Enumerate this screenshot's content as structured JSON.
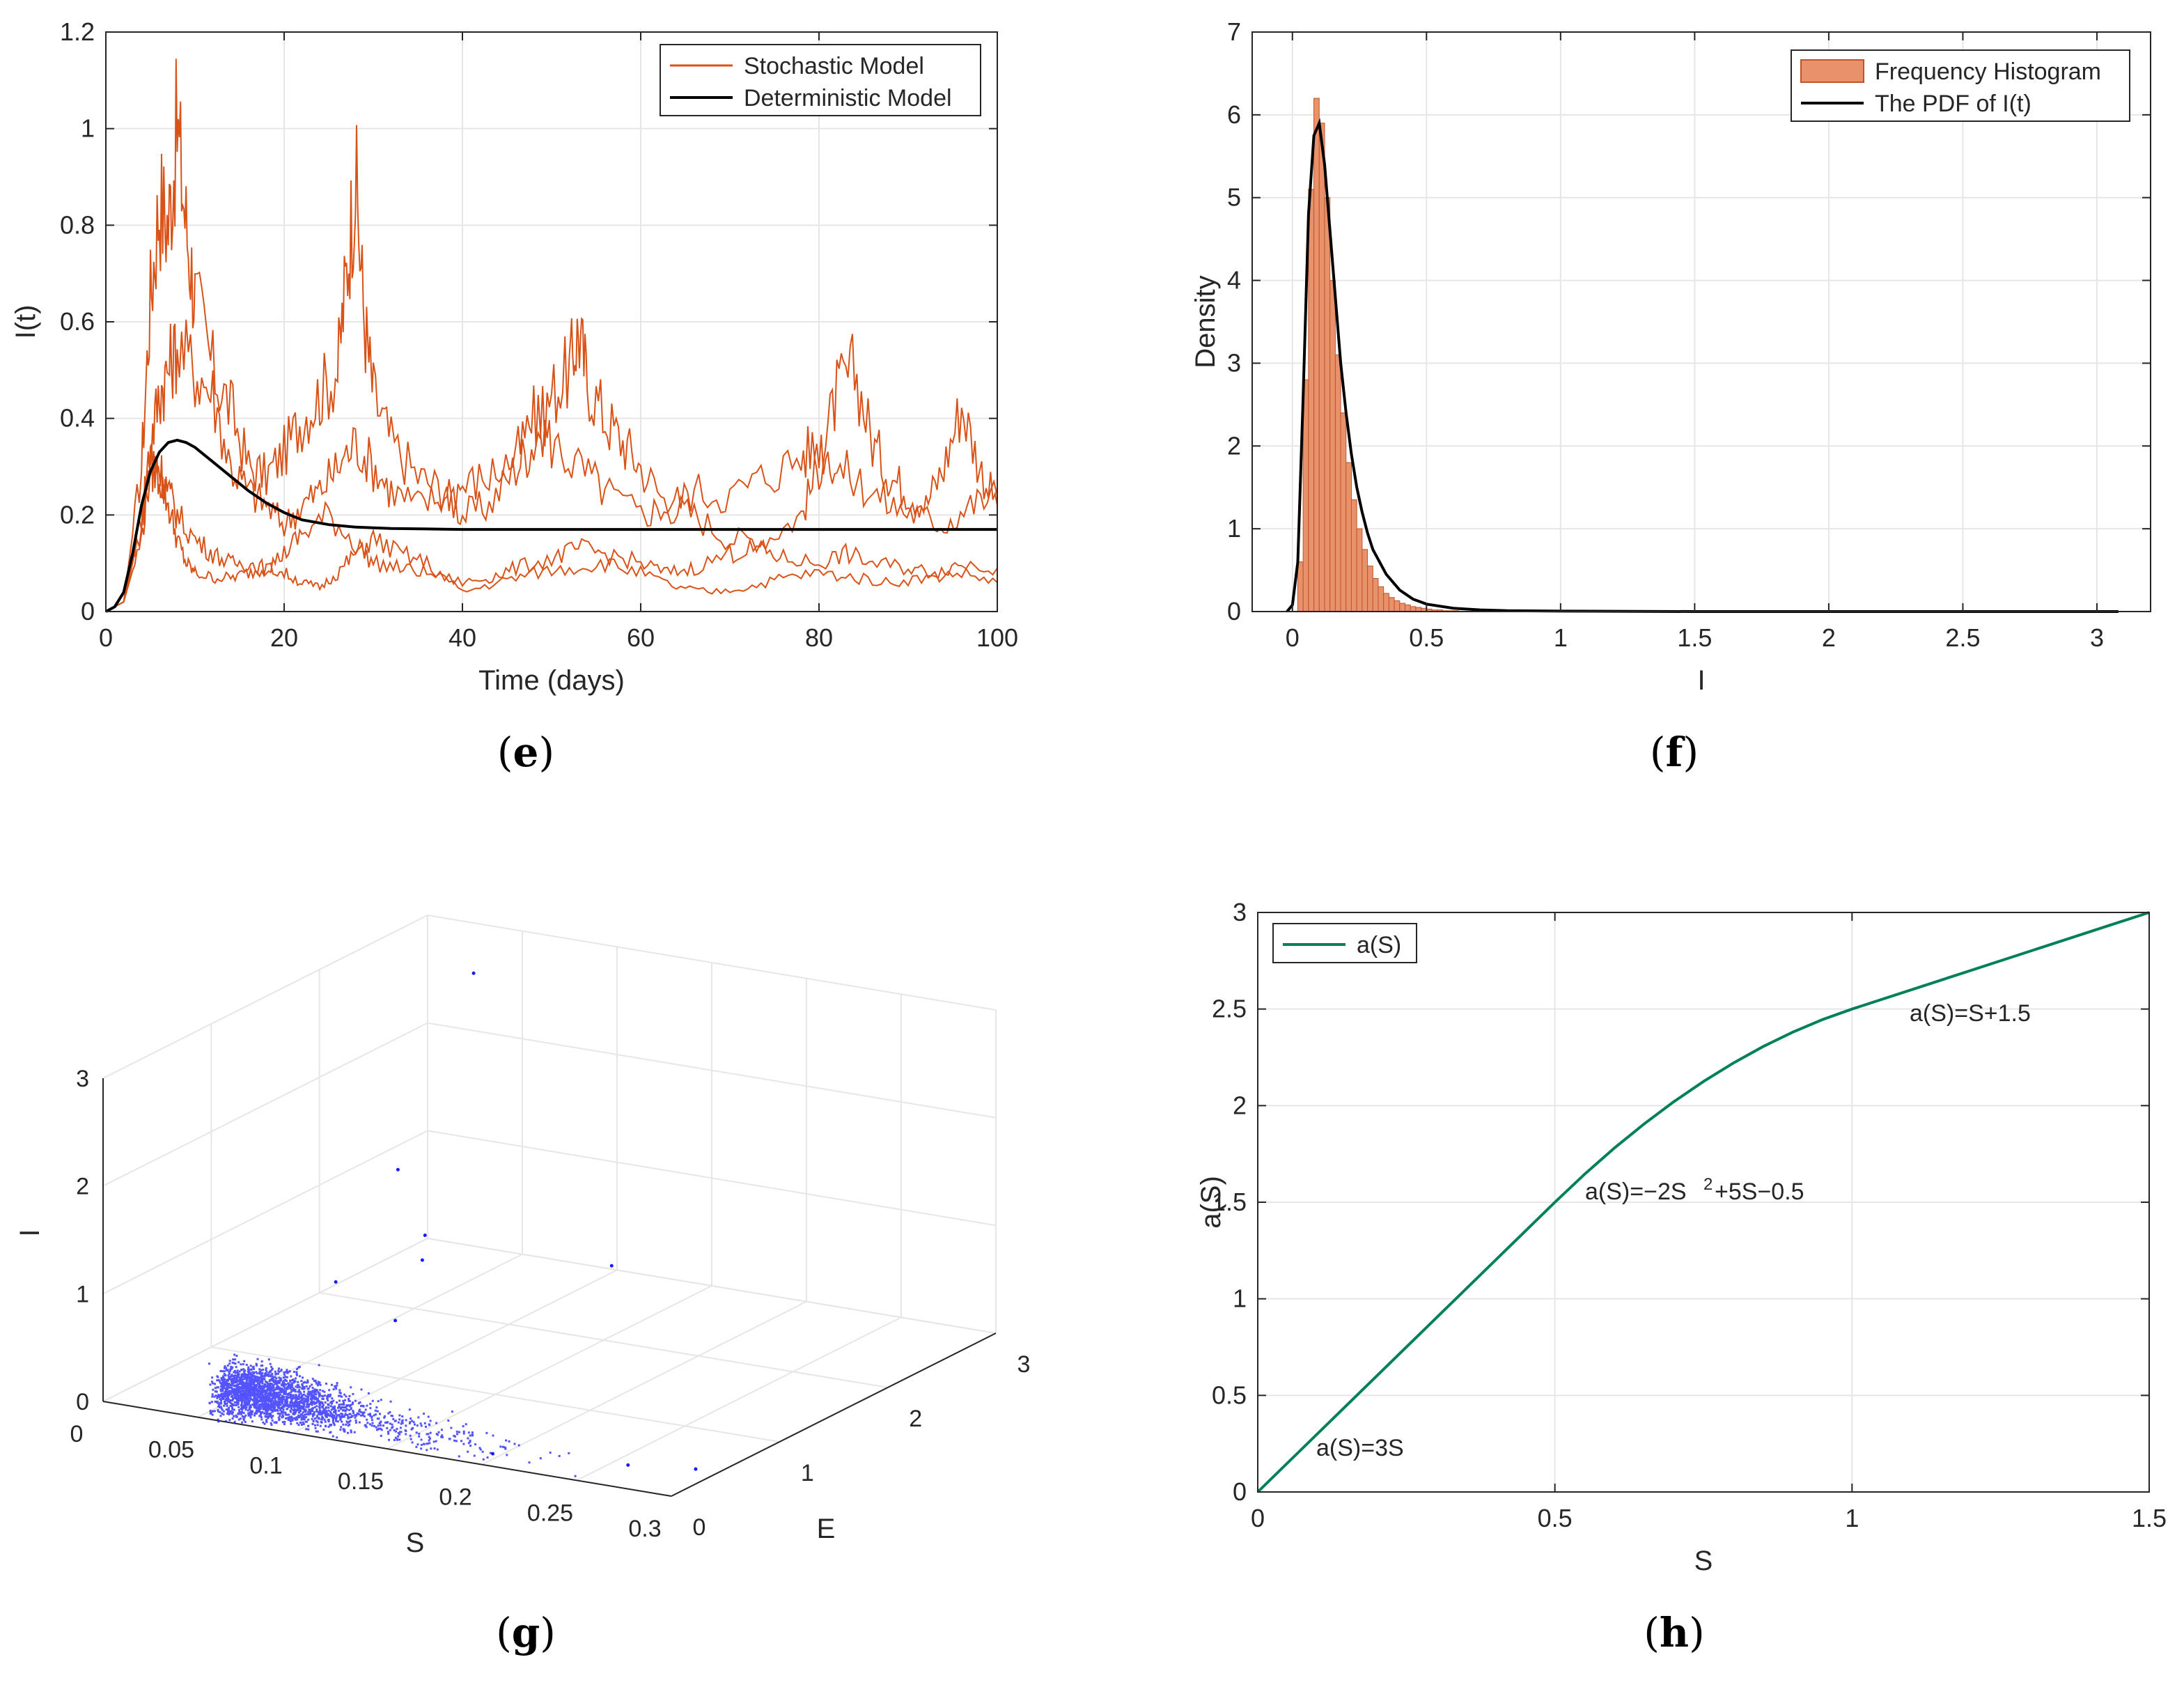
{
  "colors": {
    "stochastic": "#d95319",
    "deterministic": "#000000",
    "histogram_fill": "#e8926c",
    "histogram_edge": "#c2522a",
    "scatter": "#1a1aff",
    "a_curve": "#00805a",
    "grid": "#e6e6e6",
    "axis": "#262626"
  },
  "captions": {
    "e": "e",
    "f": "f",
    "g": "g",
    "h": "h"
  },
  "chart_data": [
    {
      "panel": "e",
      "type": "line",
      "xlabel": "Time (days)",
      "ylabel": "I(t)",
      "xlim": [
        0,
        100
      ],
      "ylim": [
        0,
        1.2
      ],
      "xticks": [
        "0",
        "20",
        "40",
        "60",
        "80",
        "100"
      ],
      "yticks": [
        "0",
        "0.2",
        "0.4",
        "0.6",
        "0.8",
        "1",
        "1.2"
      ],
      "grid": true,
      "legend": {
        "position": "top-right",
        "entries": [
          "Stochastic Model",
          "Deterministic Model"
        ]
      },
      "series": [
        {
          "name": "Deterministic Model",
          "x": [
            0,
            1,
            2,
            3,
            4,
            5,
            6,
            7,
            8,
            9,
            10,
            12,
            14,
            16,
            18,
            20,
            22,
            25,
            28,
            32,
            36,
            40,
            50,
            60,
            70,
            80,
            90,
            100
          ],
          "y": [
            0,
            0.01,
            0.04,
            0.12,
            0.22,
            0.29,
            0.33,
            0.35,
            0.355,
            0.35,
            0.34,
            0.31,
            0.28,
            0.25,
            0.225,
            0.205,
            0.19,
            0.18,
            0.175,
            0.172,
            0.171,
            0.17,
            0.17,
            0.17,
            0.17,
            0.17,
            0.17,
            0.17
          ]
        },
        {
          "name": "Stochastic Model 1",
          "x": [
            0,
            2,
            4,
            5,
            6,
            7,
            8,
            9,
            10,
            12,
            14,
            16,
            18,
            20,
            22,
            24,
            26,
            27,
            28,
            29,
            30,
            32,
            35,
            38,
            40,
            43,
            46,
            48,
            50,
            52,
            53,
            54,
            56,
            58,
            60,
            63,
            66,
            70,
            74,
            78,
            80,
            82,
            84,
            86,
            88,
            90,
            92,
            94,
            96,
            98,
            100
          ],
          "y": [
            0,
            0.02,
            0.3,
            0.65,
            0.85,
            0.8,
            1.0,
            0.8,
            0.65,
            0.5,
            0.42,
            0.3,
            0.28,
            0.33,
            0.4,
            0.45,
            0.5,
            0.7,
            0.9,
            0.6,
            0.45,
            0.35,
            0.28,
            0.25,
            0.2,
            0.22,
            0.3,
            0.35,
            0.45,
            0.5,
            0.58,
            0.48,
            0.4,
            0.35,
            0.3,
            0.22,
            0.2,
            0.15,
            0.15,
            0.2,
            0.3,
            0.45,
            0.5,
            0.35,
            0.28,
            0.25,
            0.22,
            0.3,
            0.43,
            0.3,
            0.22
          ]
        },
        {
          "name": "Stochastic Model 2",
          "x": [
            0,
            2,
            4,
            5,
            6,
            7,
            8,
            10,
            12,
            14,
            16,
            18,
            20,
            22,
            24,
            26,
            28,
            30,
            32,
            35,
            38,
            40,
            43,
            46,
            48,
            50,
            53,
            56,
            60,
            63,
            66,
            70,
            74,
            78,
            80,
            82,
            85,
            88,
            91,
            94,
            97,
            100
          ],
          "y": [
            0,
            0.02,
            0.2,
            0.35,
            0.45,
            0.5,
            0.55,
            0.5,
            0.45,
            0.3,
            0.25,
            0.22,
            0.18,
            0.22,
            0.25,
            0.3,
            0.35,
            0.3,
            0.25,
            0.22,
            0.24,
            0.26,
            0.28,
            0.32,
            0.4,
            0.35,
            0.3,
            0.25,
            0.2,
            0.22,
            0.25,
            0.24,
            0.28,
            0.32,
            0.35,
            0.3,
            0.26,
            0.22,
            0.2,
            0.18,
            0.22,
            0.24
          ]
        },
        {
          "name": "Stochastic Model 3",
          "x": [
            0,
            2,
            4,
            5,
            6,
            7,
            8,
            9,
            10,
            12,
            14,
            16,
            18,
            20,
            22,
            25,
            28,
            30,
            33,
            36,
            40,
            43,
            46,
            50,
            53,
            56,
            60,
            63,
            66,
            70,
            73,
            76,
            80,
            83,
            86,
            90,
            93,
            96,
            100
          ],
          "y": [
            0,
            0.02,
            0.15,
            0.3,
            0.28,
            0.22,
            0.15,
            0.1,
            0.08,
            0.07,
            0.07,
            0.08,
            0.09,
            0.12,
            0.16,
            0.2,
            0.14,
            0.1,
            0.09,
            0.08,
            0.06,
            0.07,
            0.09,
            0.11,
            0.13,
            0.12,
            0.1,
            0.08,
            0.09,
            0.12,
            0.13,
            0.11,
            0.1,
            0.12,
            0.1,
            0.09,
            0.08,
            0.1,
            0.09
          ]
        },
        {
          "name": "Stochastic Model 4",
          "x": [
            0,
            2,
            4,
            5,
            6,
            7,
            8,
            10,
            12,
            14,
            16,
            18,
            20,
            22,
            24,
            26,
            28,
            30,
            33,
            36,
            40,
            44,
            48,
            52,
            56,
            60,
            64,
            68,
            72,
            76,
            80,
            84,
            88,
            92,
            96,
            100
          ],
          "y": [
            0,
            0.02,
            0.18,
            0.32,
            0.3,
            0.25,
            0.2,
            0.15,
            0.12,
            0.1,
            0.1,
            0.09,
            0.08,
            0.06,
            0.05,
            0.08,
            0.12,
            0.15,
            0.12,
            0.1,
            0.04,
            0.06,
            0.08,
            0.09,
            0.1,
            0.08,
            0.05,
            0.04,
            0.05,
            0.07,
            0.08,
            0.07,
            0.06,
            0.07,
            0.08,
            0.06
          ]
        }
      ]
    },
    {
      "panel": "f",
      "type": "bar",
      "xlabel": "I",
      "ylabel": "Density",
      "xlim": [
        -0.15,
        3.2
      ],
      "ylim": [
        0,
        7
      ],
      "xticks": [
        "0",
        "0.5",
        "1",
        "1.5",
        "2",
        "2.5",
        "3"
      ],
      "yticks": [
        "0",
        "1",
        "2",
        "3",
        "4",
        "5",
        "6",
        "7"
      ],
      "grid": true,
      "legend": {
        "position": "top-right",
        "entries": [
          "Frequency Histogram",
          "The PDF of I(t)"
        ]
      },
      "histogram": {
        "bin_width": 0.02,
        "bin_start": 0.02,
        "values": [
          0.6,
          2.8,
          5.1,
          6.2,
          5.9,
          5.0,
          4.0,
          3.1,
          2.4,
          1.8,
          1.35,
          1.0,
          0.75,
          0.55,
          0.4,
          0.3,
          0.22,
          0.17,
          0.13,
          0.1,
          0.08,
          0.06,
          0.05,
          0.04,
          0.03,
          0.02,
          0.02,
          0.01,
          0.01,
          0.01
        ]
      },
      "pdf": {
        "x": [
          -0.02,
          0.0,
          0.02,
          0.04,
          0.06,
          0.08,
          0.1,
          0.12,
          0.14,
          0.16,
          0.18,
          0.2,
          0.22,
          0.24,
          0.26,
          0.28,
          0.3,
          0.35,
          0.4,
          0.45,
          0.5,
          0.6,
          0.7,
          0.8,
          1.0,
          1.5,
          2.0,
          2.5,
          3.08
        ],
        "y": [
          0,
          0.08,
          0.6,
          2.6,
          4.8,
          5.75,
          5.9,
          5.4,
          4.6,
          3.8,
          3.0,
          2.4,
          1.9,
          1.5,
          1.2,
          0.95,
          0.75,
          0.45,
          0.26,
          0.15,
          0.09,
          0.04,
          0.02,
          0.01,
          0.005,
          0,
          0,
          0,
          0
        ]
      }
    },
    {
      "panel": "g",
      "type": "scatter",
      "xlabel": "S",
      "ylabel": "I",
      "zlabel": "E",
      "xlim": [
        0,
        0.3
      ],
      "ylim": [
        0,
        3
      ],
      "zlim": [
        0,
        3
      ],
      "s_ticks": [
        "0",
        "0.05",
        "0.1",
        "0.15",
        "0.2",
        "0.25",
        "0.3"
      ],
      "e_ticks": [
        "0",
        "1",
        "2",
        "3"
      ],
      "i_ticks": [
        "0",
        "1",
        "2",
        "3"
      ],
      "grid": true,
      "n_points": 9000,
      "note": "dense cloud of S–I–E samples concentrated near S≈0.05, I≈0.2, E≈0.2"
    },
    {
      "panel": "h",
      "type": "line",
      "xlabel": "S",
      "ylabel": "a(S)",
      "xlim": [
        0,
        1.5
      ],
      "ylim": [
        0,
        3
      ],
      "xticks": [
        "0",
        "0.5",
        "1",
        "1.5"
      ],
      "yticks": [
        "0",
        "0.5",
        "1",
        "1.5",
        "2",
        "2.5",
        "3"
      ],
      "grid": true,
      "legend": {
        "position": "top-left",
        "entries": [
          "a(S)"
        ]
      },
      "series": [
        {
          "name": "a(S)",
          "x": [
            0,
            0.5,
            0.55,
            0.6,
            0.65,
            0.7,
            0.75,
            0.8,
            0.85,
            0.9,
            0.95,
            1.0,
            1.5
          ],
          "y": [
            0,
            1.5,
            1.645,
            1.78,
            1.905,
            2.02,
            2.125,
            2.22,
            2.305,
            2.38,
            2.445,
            2.5,
            3.0
          ]
        }
      ],
      "annotations": [
        "a(S)=3S",
        "a(S)=−2S",
        "2",
        "+5S−0.5",
        "a(S)=S+1.5"
      ]
    }
  ]
}
